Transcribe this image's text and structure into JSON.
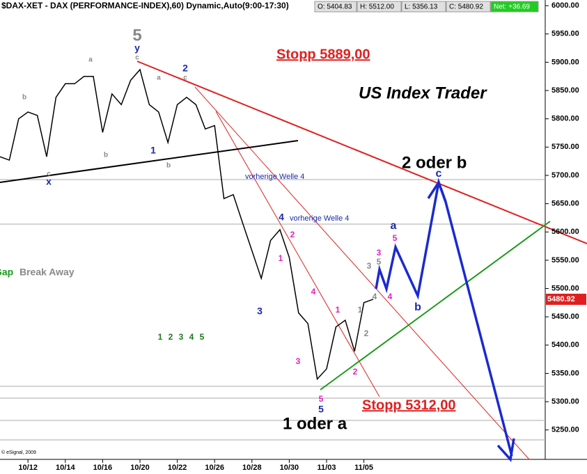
{
  "chart_data": {
    "type": "line",
    "title": "$DAX-XET - DAX (PERFORMANCE-INDEX),60) Dynamic,Auto(9:00-17:30)",
    "quote": [
      "O: 5404.83",
      "H: 5512.00",
      "L: 5356.13",
      "C: 5480.92"
    ],
    "net": "Net: +36.69",
    "last_price_label": "5480.92",
    "copyright": "© eSignal, 2009",
    "categories": [
      null,
      null,
      null,
      "10/12",
      null,
      null,
      null,
      "10/14",
      null,
      null,
      null,
      "10/16",
      null,
      null,
      null,
      "10/20",
      null,
      null,
      null,
      "10/22",
      null,
      null,
      null,
      "10/26",
      null,
      null,
      null,
      "10/28",
      null,
      null,
      null,
      "10/30",
      null,
      null,
      null,
      "11/03",
      null,
      null,
      null,
      "11/05",
      null
    ],
    "series": [
      {
        "name": "DAX",
        "color": "#000000",
        "values": [
          5733,
          5727,
          5800,
          5812,
          5806,
          5733,
          5838,
          5862,
          5862,
          5875,
          5875,
          5776,
          5844,
          5825,
          5868,
          5887,
          5825,
          5812,
          5758,
          5825,
          5838,
          5825,
          5782,
          5788,
          5659,
          5666,
          5616,
          5567,
          5518,
          5585,
          5604,
          5555,
          5457,
          5438,
          5340,
          5358,
          5432,
          5444,
          5389,
          5475,
          5481
        ]
      }
    ],
    "ylim": [
      5198,
      6010
    ],
    "yticks": [
      {
        "value": 5250,
        "label": "5250.00"
      },
      {
        "value": 5300,
        "label": "5300.00"
      },
      {
        "value": 5350,
        "label": "5350.00"
      },
      {
        "value": 5400,
        "label": "5400.00"
      },
      {
        "value": 5450,
        "label": "5450.00"
      },
      {
        "value": 5500,
        "label": "5500.00"
      },
      {
        "value": 5550,
        "label": "5550.00"
      },
      {
        "value": 5600,
        "label": "5600.00"
      },
      {
        "value": 5650,
        "label": "5650.00"
      },
      {
        "value": 5700,
        "label": "5700.00"
      },
      {
        "value": 5750,
        "label": "5750.00"
      },
      {
        "value": 5800,
        "label": "5800.00"
      },
      {
        "value": 5850,
        "label": "5850.00"
      },
      {
        "value": 5900,
        "label": "5900.00"
      },
      {
        "value": 5950,
        "label": "5950.00"
      },
      {
        "value": 6000,
        "label": "6000.00"
      }
    ],
    "annotations": {
      "stop_high": "Stopp 5889,00",
      "brand": "US Index Trader",
      "target": "2 oder b",
      "prev_wave_1": "vorherige Welle 4",
      "prev_wave_2": "vorherige  Welle 4",
      "low_label": "1 oder a",
      "stop_low": "Stopp 5312,00",
      "gap": "Gap",
      "break_away": "Break Away"
    },
    "wave_labels": [
      {
        "text": "5",
        "color": "#888888"
      },
      {
        "text": "y",
        "color": "#1a2aa8"
      },
      {
        "text": "c",
        "color": "#888888"
      },
      {
        "text": "a",
        "color": "#888888"
      },
      {
        "text": "b",
        "color": "#888888"
      },
      {
        "text": "c",
        "color": "#888888"
      },
      {
        "text": "x",
        "color": "#1a2aa8"
      },
      {
        "text": "b",
        "color": "#888888"
      },
      {
        "text": "1",
        "color": "#1a2aa8"
      },
      {
        "text": "a",
        "color": "#888888"
      },
      {
        "text": "b",
        "color": "#888888"
      },
      {
        "text": "2",
        "color": "#1a2aa8"
      },
      {
        "text": "c",
        "color": "#888888"
      },
      {
        "text": "4",
        "color": "#1a2aa8"
      },
      {
        "text": "2",
        "color": "#e020c0"
      },
      {
        "text": "1",
        "color": "#e020c0"
      },
      {
        "text": "3",
        "color": "#1a2aa8"
      },
      {
        "text": "4",
        "color": "#e020c0"
      },
      {
        "text": "3",
        "color": "#e020c0"
      },
      {
        "text": "1",
        "color": "#e020c0"
      },
      {
        "text": "5",
        "color": "#e020c0"
      },
      {
        "text": "5",
        "color": "#1a2aa8"
      },
      {
        "text": "2",
        "color": "#e020c0"
      },
      {
        "text": "2",
        "color": "#888888"
      },
      {
        "text": "1",
        "color": "#888888"
      },
      {
        "text": "3",
        "color": "#888888"
      },
      {
        "text": "5",
        "color": "#888888"
      },
      {
        "text": "3",
        "color": "#e020c0"
      },
      {
        "text": "4",
        "color": "#888888"
      },
      {
        "text": "4",
        "color": "#e020c0"
      },
      {
        "text": "5",
        "color": "#e020c0"
      },
      {
        "text": "a",
        "color": "#1a2aa8"
      },
      {
        "text": "b",
        "color": "#1a2aa8"
      },
      {
        "text": "c",
        "color": "#1a2aa8"
      },
      {
        "text": "1",
        "color": "#1a7a1a"
      },
      {
        "text": "2",
        "color": "#1a7a1a"
      },
      {
        "text": "3",
        "color": "#1a7a1a"
      },
      {
        "text": "4",
        "color": "#1a7a1a"
      },
      {
        "text": "5",
        "color": "#1a7a1a"
      }
    ]
  }
}
